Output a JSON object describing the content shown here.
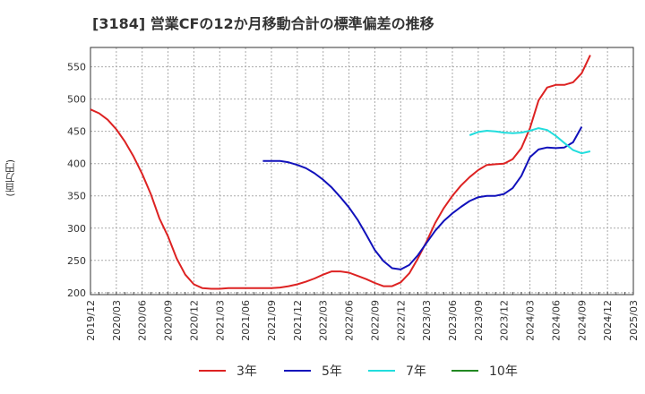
{
  "chart_data": {
    "type": "line",
    "title": "[3184]  営業CFの12か月移動合計の標準偏差の推移",
    "ylabel": "(百万円)",
    "xlabel": "",
    "ylim": [
      197,
      580
    ],
    "yticks": [
      200,
      250,
      300,
      350,
      400,
      450,
      500,
      550
    ],
    "x_range": [
      "2019-12",
      "2025-03"
    ],
    "xticks": [
      "2019/12",
      "2020/03",
      "2020/06",
      "2020/09",
      "2020/12",
      "2021/03",
      "2021/06",
      "2021/09",
      "2021/12",
      "2022/03",
      "2022/06",
      "2022/09",
      "2022/12",
      "2023/03",
      "2023/06",
      "2023/09",
      "2023/12",
      "2024/03",
      "2024/06",
      "2024/09",
      "2024/12",
      "2025/03"
    ],
    "grid": true,
    "legend_position": "bottom",
    "series": [
      {
        "name": "3年",
        "color": "#dd2222",
        "points": [
          [
            "2019-12",
            484
          ],
          [
            "2020-01",
            478
          ],
          [
            "2020-02",
            468
          ],
          [
            "2020-03",
            453
          ],
          [
            "2020-04",
            434
          ],
          [
            "2020-05",
            411
          ],
          [
            "2020-06",
            384
          ],
          [
            "2020-07",
            353
          ],
          [
            "2020-08",
            315
          ],
          [
            "2020-09",
            287
          ],
          [
            "2020-10",
            253
          ],
          [
            "2020-11",
            228
          ],
          [
            "2020-12",
            213
          ],
          [
            "2021-01",
            207
          ],
          [
            "2021-02",
            206
          ],
          [
            "2021-03",
            206
          ],
          [
            "2021-04",
            207
          ],
          [
            "2021-05",
            207
          ],
          [
            "2021-06",
            207
          ],
          [
            "2021-07",
            207
          ],
          [
            "2021-08",
            207
          ],
          [
            "2021-09",
            207
          ],
          [
            "2021-10",
            208
          ],
          [
            "2021-11",
            210
          ],
          [
            "2021-12",
            213
          ],
          [
            "2022-01",
            217
          ],
          [
            "2022-02",
            222
          ],
          [
            "2022-03",
            228
          ],
          [
            "2022-04",
            233
          ],
          [
            "2022-05",
            233
          ],
          [
            "2022-06",
            231
          ],
          [
            "2022-07",
            226
          ],
          [
            "2022-08",
            221
          ],
          [
            "2022-09",
            215
          ],
          [
            "2022-10",
            210
          ],
          [
            "2022-11",
            210
          ],
          [
            "2022-12",
            216
          ],
          [
            "2023-01",
            230
          ],
          [
            "2023-02",
            253
          ],
          [
            "2023-03",
            279
          ],
          [
            "2023-04",
            308
          ],
          [
            "2023-05",
            331
          ],
          [
            "2023-06",
            350
          ],
          [
            "2023-07",
            366
          ],
          [
            "2023-08",
            379
          ],
          [
            "2023-09",
            390
          ],
          [
            "2023-10",
            398
          ],
          [
            "2023-11",
            399
          ],
          [
            "2023-12",
            400
          ],
          [
            "2024-01",
            407
          ],
          [
            "2024-02",
            424
          ],
          [
            "2024-03",
            455
          ],
          [
            "2024-04",
            498
          ],
          [
            "2024-05",
            518
          ],
          [
            "2024-06",
            522
          ],
          [
            "2024-07",
            522
          ],
          [
            "2024-08",
            526
          ],
          [
            "2024-09",
            540
          ],
          [
            "2024-10",
            568
          ]
        ]
      },
      {
        "name": "5年",
        "color": "#1111bb",
        "points": [
          [
            "2021-08",
            404
          ],
          [
            "2021-09",
            404
          ],
          [
            "2021-10",
            404
          ],
          [
            "2021-11",
            402
          ],
          [
            "2021-12",
            398
          ],
          [
            "2022-01",
            393
          ],
          [
            "2022-02",
            385
          ],
          [
            "2022-03",
            375
          ],
          [
            "2022-04",
            363
          ],
          [
            "2022-05",
            348
          ],
          [
            "2022-06",
            332
          ],
          [
            "2022-07",
            313
          ],
          [
            "2022-08",
            290
          ],
          [
            "2022-09",
            266
          ],
          [
            "2022-10",
            249
          ],
          [
            "2022-11",
            238
          ],
          [
            "2022-12",
            236
          ],
          [
            "2023-01",
            243
          ],
          [
            "2023-02",
            258
          ],
          [
            "2023-03",
            277
          ],
          [
            "2023-04",
            296
          ],
          [
            "2023-05",
            311
          ],
          [
            "2023-06",
            323
          ],
          [
            "2023-07",
            333
          ],
          [
            "2023-08",
            342
          ],
          [
            "2023-09",
            348
          ],
          [
            "2023-10",
            350
          ],
          [
            "2023-11",
            350
          ],
          [
            "2023-12",
            353
          ],
          [
            "2024-01",
            362
          ],
          [
            "2024-02",
            381
          ],
          [
            "2024-03",
            410
          ],
          [
            "2024-04",
            422
          ],
          [
            "2024-05",
            425
          ],
          [
            "2024-06",
            424
          ],
          [
            "2024-07",
            425
          ],
          [
            "2024-08",
            433
          ],
          [
            "2024-09",
            457
          ]
        ]
      },
      {
        "name": "7年",
        "color": "#22dddd",
        "points": [
          [
            "2023-08",
            444
          ],
          [
            "2023-09",
            449
          ],
          [
            "2023-10",
            451
          ],
          [
            "2023-11",
            450
          ],
          [
            "2023-12",
            448
          ],
          [
            "2024-01",
            447
          ],
          [
            "2024-02",
            448
          ],
          [
            "2024-03",
            451
          ],
          [
            "2024-04",
            455
          ],
          [
            "2024-05",
            452
          ],
          [
            "2024-06",
            443
          ],
          [
            "2024-07",
            432
          ],
          [
            "2024-08",
            421
          ],
          [
            "2024-09",
            416
          ],
          [
            "2024-10",
            419
          ]
        ]
      },
      {
        "name": "10年",
        "color": "#228822",
        "points": []
      }
    ]
  }
}
